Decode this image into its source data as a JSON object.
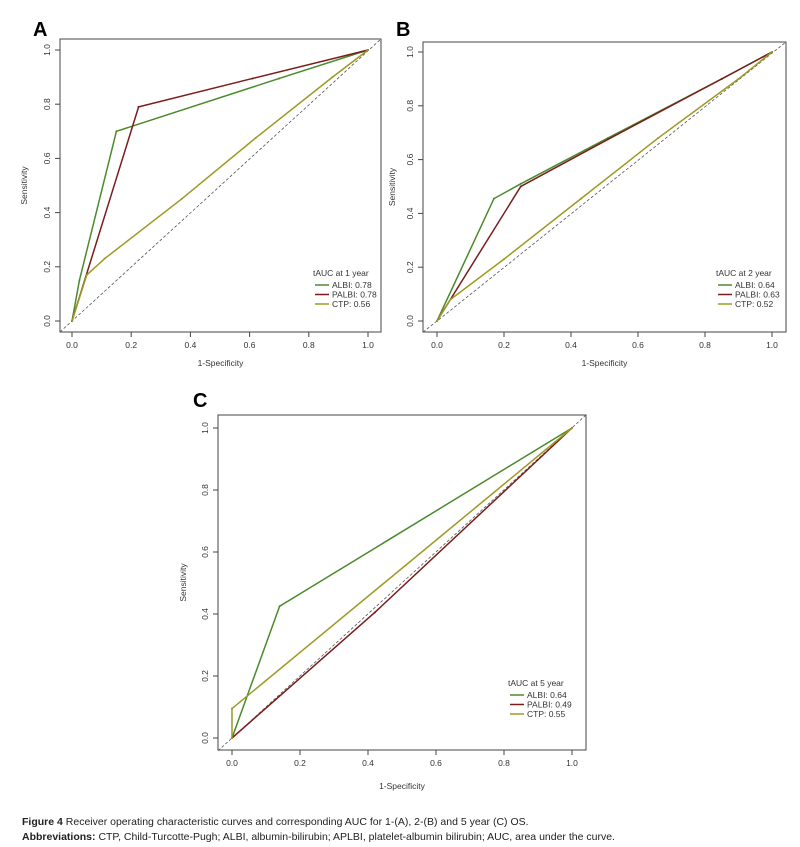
{
  "chart_data": [
    {
      "panel": "A",
      "type": "line",
      "xlabel": "1-Specificity",
      "ylabel": "Sensitivity",
      "xlim": [
        0,
        1
      ],
      "ylim": [
        0,
        1
      ],
      "xticks": [
        "0.0",
        "0.2",
        "0.4",
        "0.6",
        "0.8",
        "1.0"
      ],
      "yticks": [
        "0.0",
        "0.2",
        "0.4",
        "0.6",
        "0.8",
        "1.0"
      ],
      "reference_line": "diagonal dashed",
      "legend_title": "tAUC at 1 year",
      "legend_position": "bottom-right",
      "series": [
        {
          "name": "ALBI: 0.78",
          "color": "#4b8a2c",
          "x": [
            0,
            0.025,
            0.15,
            0.7,
            1
          ],
          "y": [
            0,
            0.15,
            0.7,
            0.895,
            1
          ]
        },
        {
          "name": "PALBI: 0.78",
          "color": "#7b1c1c",
          "x": [
            0,
            0.225,
            0.61,
            1
          ],
          "y": [
            0,
            0.79,
            0.895,
            1
          ]
        },
        {
          "name": "CTP: 0.56",
          "color": "#9c9a22",
          "x": [
            0,
            0.05,
            0.11,
            0.37,
            0.62,
            0.88,
            1
          ],
          "y": [
            0,
            0.17,
            0.23,
            0.45,
            0.675,
            0.9,
            1
          ]
        }
      ]
    },
    {
      "panel": "B",
      "type": "line",
      "xlabel": "1-Specificity",
      "ylabel": "Sensitivity",
      "xlim": [
        0,
        1
      ],
      "ylim": [
        0,
        1
      ],
      "xticks": [
        "0.0",
        "0.2",
        "0.4",
        "0.6",
        "0.8",
        "1.0"
      ],
      "yticks": [
        "0.0",
        "0.2",
        "0.4",
        "0.6",
        "0.8",
        "1.0"
      ],
      "reference_line": "diagonal dashed",
      "legend_title": "tAUC at 2 year",
      "legend_position": "bottom-right",
      "series": [
        {
          "name": "ALBI: 0.64",
          "color": "#4b8a2c",
          "x": [
            0,
            0.17,
            0.25,
            0.51,
            0.85,
            1
          ],
          "y": [
            0,
            0.455,
            0.51,
            0.68,
            0.9,
            1
          ]
        },
        {
          "name": "PALBI: 0.63",
          "color": "#7b1c1c",
          "x": [
            0,
            0.25,
            0.51,
            0.85,
            1
          ],
          "y": [
            0,
            0.5,
            0.675,
            0.9,
            1
          ]
        },
        {
          "name": "CTP: 0.52",
          "color": "#9c9a22",
          "x": [
            0,
            0.04,
            0.2,
            0.43,
            0.66,
            0.9,
            1
          ],
          "y": [
            0,
            0.08,
            0.23,
            0.455,
            0.68,
            0.9,
            1
          ]
        }
      ]
    },
    {
      "panel": "C",
      "type": "line",
      "xlabel": "1-Specificity",
      "ylabel": "Sensitivity",
      "xlim": [
        0,
        1
      ],
      "ylim": [
        0,
        1
      ],
      "xticks": [
        "0.0",
        "0.2",
        "0.4",
        "0.6",
        "0.8",
        "1.0"
      ],
      "yticks": [
        "0.0",
        "0.2",
        "0.4",
        "0.6",
        "0.8",
        "1.0"
      ],
      "reference_line": "diagonal dashed",
      "legend_title": "tAUC at 5 year",
      "legend_position": "bottom-right",
      "series": [
        {
          "name": "ALBI: 0.64",
          "color": "#4b8a2c",
          "x": [
            0,
            0.14,
            1
          ],
          "y": [
            0,
            0.425,
            1
          ]
        },
        {
          "name": "PALBI: 0.49",
          "color": "#7b1c1c",
          "x": [
            0,
            0.42,
            1
          ],
          "y": [
            0,
            0.405,
            1
          ]
        },
        {
          "name": "CTP: 0.55",
          "color": "#9c9a22",
          "x": [
            0,
            0,
            1
          ],
          "y": [
            0,
            0.095,
            1
          ]
        }
      ]
    }
  ],
  "caption": {
    "figure_label": "Figure 4",
    "figure_text": "Receiver operating characteristic curves and corresponding AUC for 1-(A), 2-(B) and 5 year (C) OS.",
    "abbreviations_label": "Abbreviations:",
    "abbreviations_text": "CTP, Child-Turcotte-Pugh; ALBI, albumin-bilirubin; APLBI, platelet-albumin bilirubin; AUC, area under the curve."
  }
}
